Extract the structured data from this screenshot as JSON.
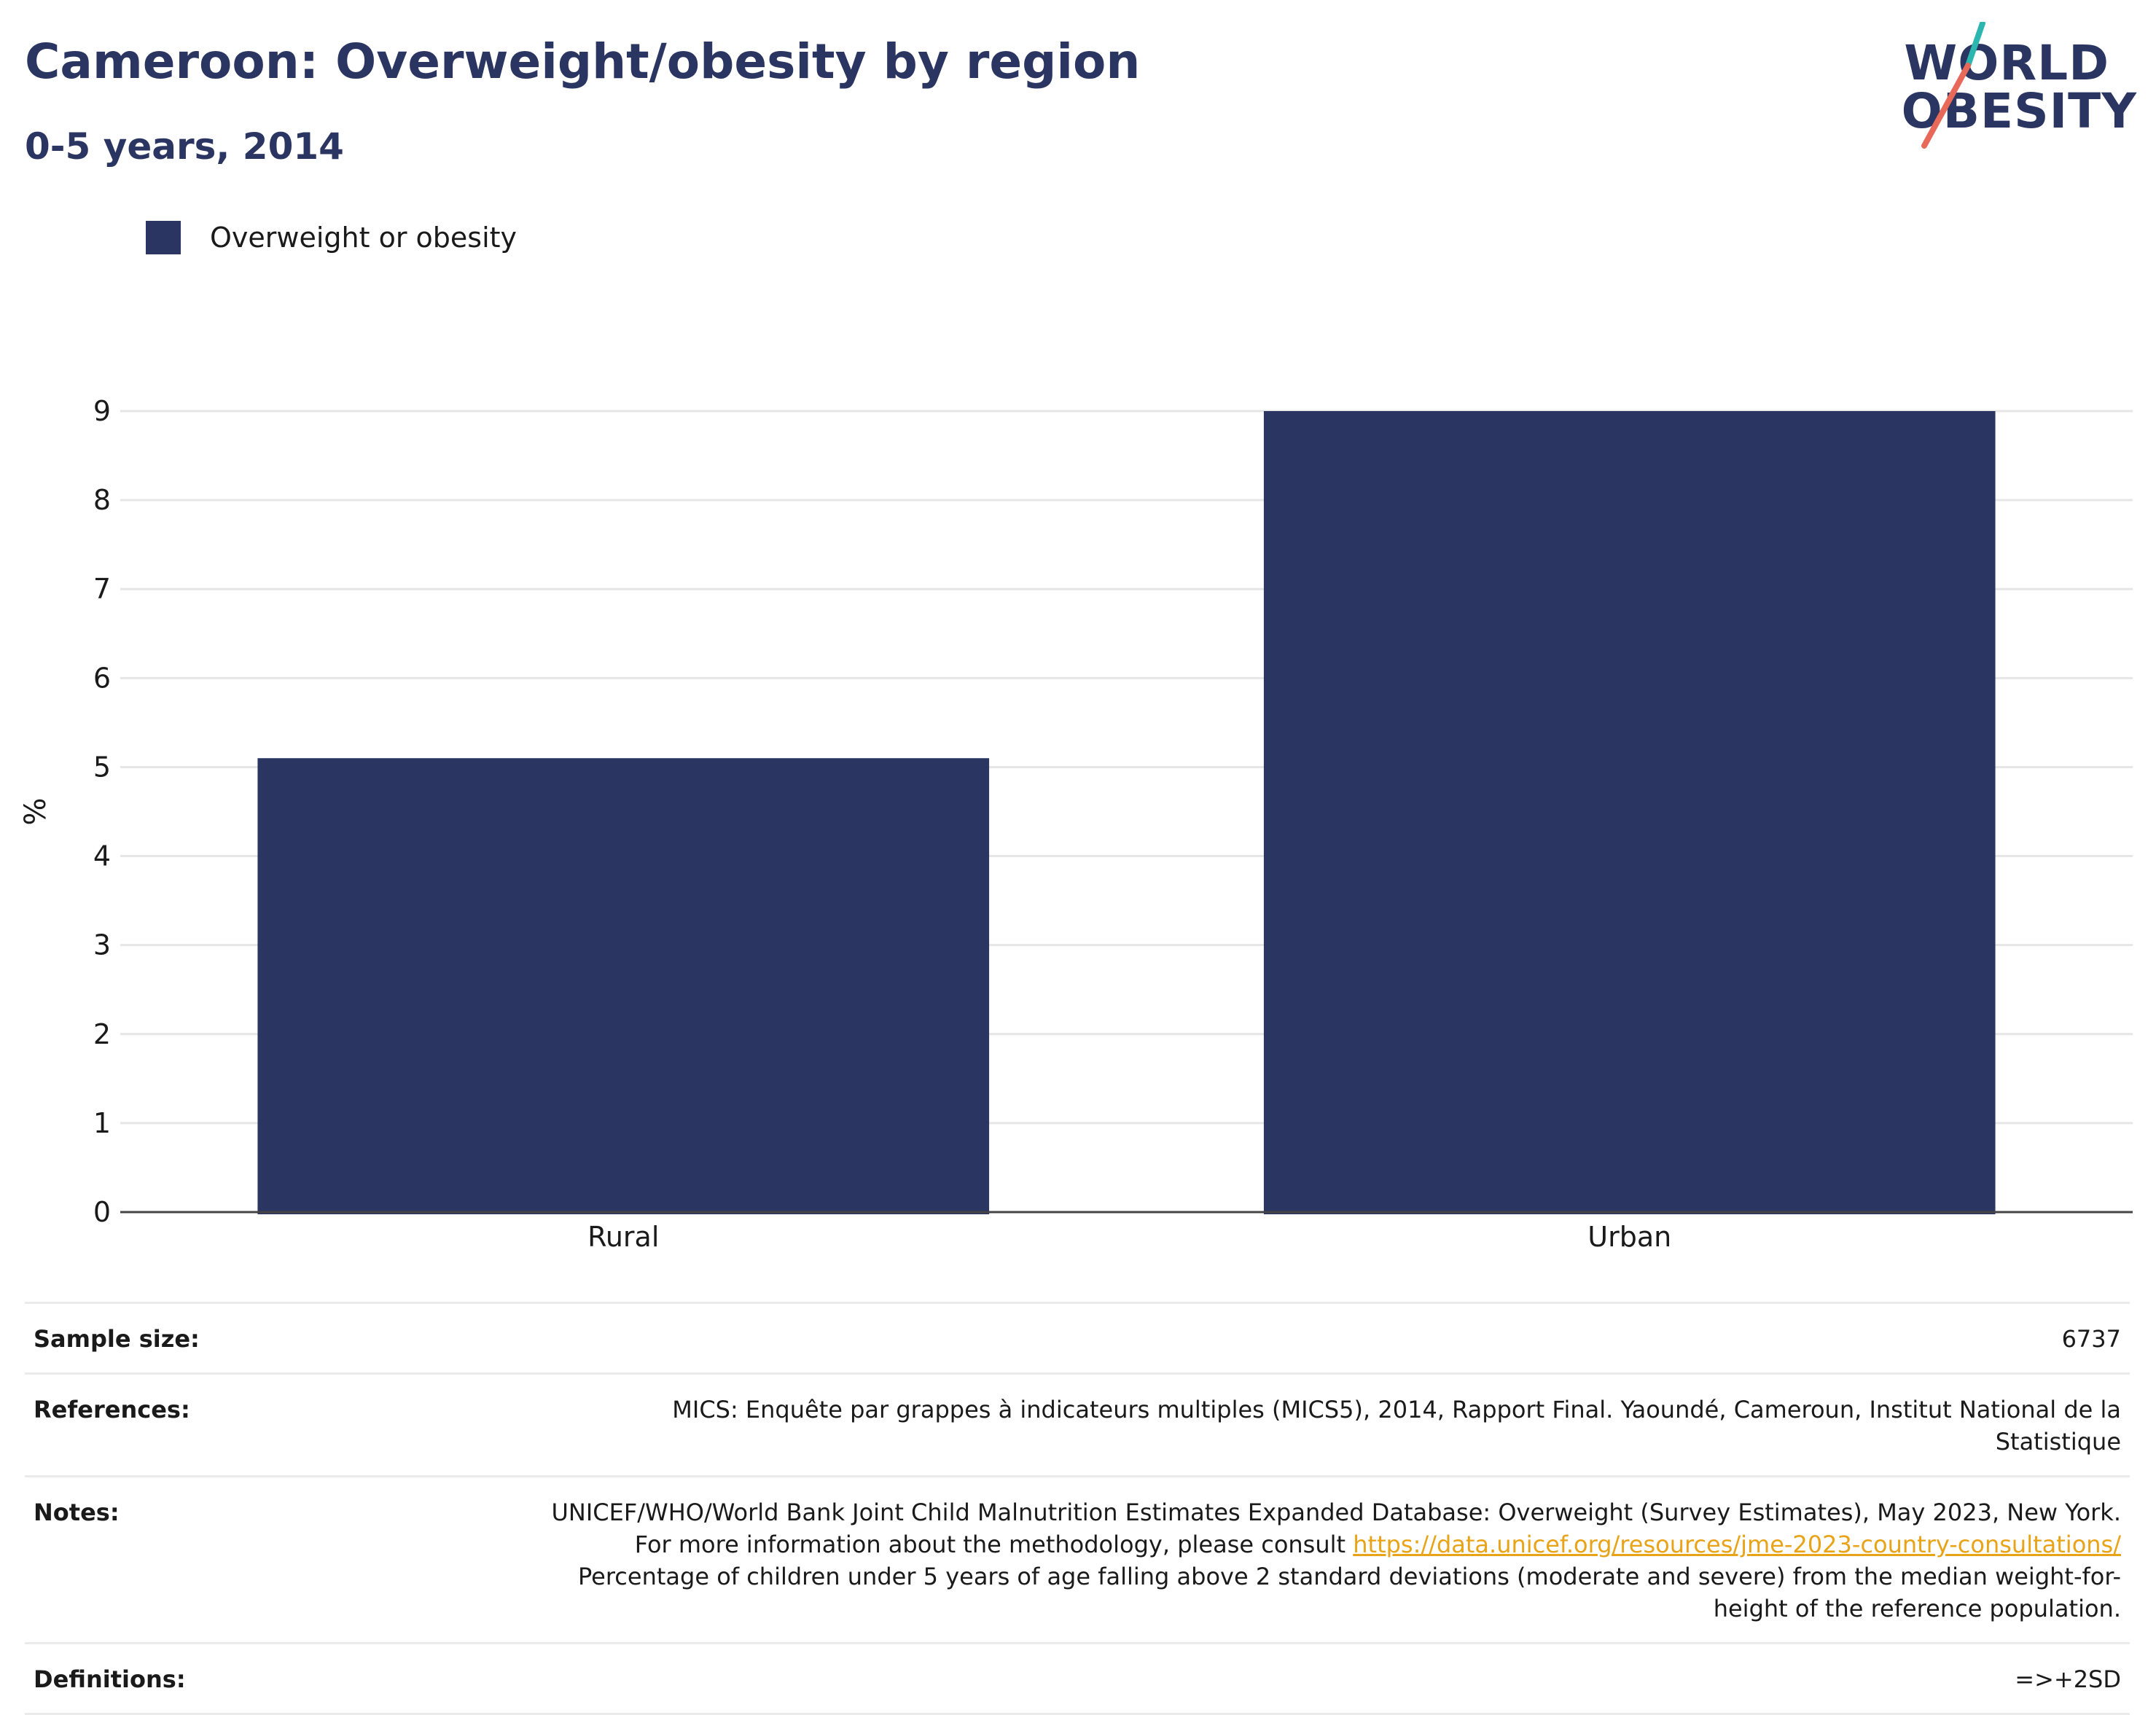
{
  "header": {
    "title": "Cameroon: Overweight/obesity by region",
    "subtitle": "0-5 years, 2014"
  },
  "logo": {
    "line1": "WORLD",
    "line2": "OBESITY",
    "colors": [
      "#2b3562",
      "#2cb6b0",
      "#e8685a"
    ]
  },
  "legend": {
    "label": "Overweight or obesity",
    "color": "#2b3562"
  },
  "chart_data": {
    "type": "bar",
    "categories": [
      "Rural",
      "Urban"
    ],
    "series": [
      {
        "name": "Overweight or obesity",
        "values": [
          5.1,
          9.0
        ]
      }
    ],
    "ylabel": "%",
    "ylim": [
      0,
      9
    ],
    "yticks": [
      0,
      1,
      2,
      3,
      4,
      5,
      6,
      7,
      8,
      9
    ],
    "grid": true,
    "legend_position": "top-left",
    "bar_color": "#2b3562"
  },
  "info": {
    "sample_size_label": "Sample size:",
    "sample_size_value": "6737",
    "references_label": "References:",
    "references_value": "MICS: Enquête par grappes à indicateurs multiples (MICS5), 2014, Rapport Final. Yaoundé, Cameroun, Institut National de la Statistique",
    "notes_label": "Notes:",
    "notes_text1": "UNICEF/WHO/World Bank Joint Child Malnutrition Estimates Expanded Database: Overweight (Survey Estimates), May 2023, New York. For more information about the methodology, please consult ",
    "notes_link": "https://data.unicef.org/resources/jme-2023-country-consultations/",
    "notes_text2": " Percentage of children under 5 years of age falling above 2 standard deviations (moderate and severe) from the median weight-for-height of the reference population.",
    "definitions_label": "Definitions:",
    "definitions_value": "=>+2SD"
  }
}
